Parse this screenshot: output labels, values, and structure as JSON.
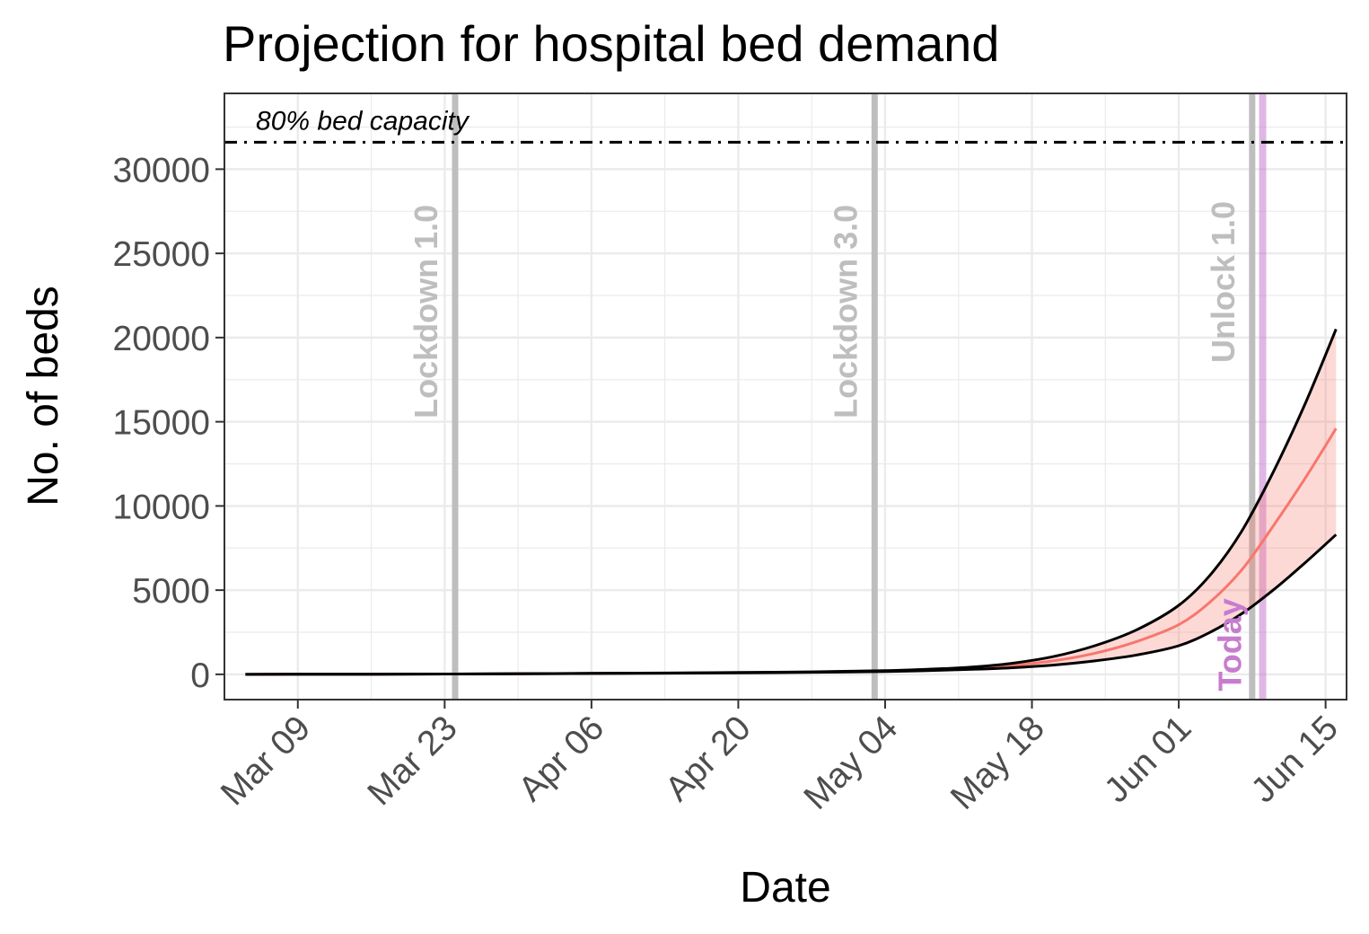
{
  "chart_data": {
    "type": "line",
    "title": "Projection for hospital bed demand",
    "xlabel": "Date",
    "ylabel": "No. of beds",
    "x_range": [
      "2020-03-02",
      "2020-06-17"
    ],
    "ylim": [
      -1500,
      34500
    ],
    "x_ticks": [
      {
        "date": "2020-03-09",
        "label": "Mar 09"
      },
      {
        "date": "2020-03-23",
        "label": "Mar 23"
      },
      {
        "date": "2020-04-06",
        "label": "Apr 06"
      },
      {
        "date": "2020-04-20",
        "label": "Apr 20"
      },
      {
        "date": "2020-05-04",
        "label": "May 04"
      },
      {
        "date": "2020-05-18",
        "label": "May 18"
      },
      {
        "date": "2020-06-01",
        "label": "Jun 01"
      },
      {
        "date": "2020-06-15",
        "label": "Jun 15"
      }
    ],
    "y_ticks": [
      0,
      5000,
      10000,
      15000,
      20000,
      25000,
      30000
    ],
    "grid": true,
    "capacity_line": {
      "value": 31600,
      "label": "80% bed capacity",
      "color": "#000000"
    },
    "events": [
      {
        "date": "2020-03-24",
        "label": "Lockdown 1.0",
        "color": "#bebebe"
      },
      {
        "date": "2020-05-03",
        "label": "Lockdown 3.0",
        "color": "#bebebe"
      },
      {
        "date": "2020-06-08",
        "label": "Unlock 1.0",
        "color": "#bebebe"
      },
      {
        "date": "2020-06-09",
        "label": "Today",
        "color": "#c77cce"
      }
    ],
    "x": [
      "2020-03-04",
      "2020-03-09",
      "2020-03-16",
      "2020-03-23",
      "2020-03-30",
      "2020-04-06",
      "2020-04-13",
      "2020-04-20",
      "2020-04-27",
      "2020-05-04",
      "2020-05-08",
      "2020-05-12",
      "2020-05-16",
      "2020-05-20",
      "2020-05-24",
      "2020-05-28",
      "2020-06-01",
      "2020-06-04",
      "2020-06-07",
      "2020-06-10",
      "2020-06-13",
      "2020-06-16"
    ],
    "series": [
      {
        "name": "",
        "role": "upper",
        "color": "#000000",
        "values": [
          0,
          5,
          10,
          20,
          40,
          60,
          80,
          110,
          150,
          220,
          300,
          420,
          650,
          1050,
          1700,
          2650,
          4100,
          5900,
          8500,
          12000,
          16000,
          20500
        ]
      },
      {
        "name": "",
        "role": "median",
        "color": "#f8766d",
        "values": [
          0,
          5,
          10,
          20,
          35,
          55,
          75,
          100,
          140,
          200,
          260,
          360,
          520,
          800,
          1250,
          1950,
          2950,
          4300,
          6200,
          8800,
          11600,
          14600
        ]
      },
      {
        "name": "",
        "role": "lower",
        "color": "#000000",
        "values": [
          0,
          5,
          10,
          20,
          30,
          50,
          70,
          90,
          120,
          170,
          220,
          290,
          390,
          550,
          800,
          1150,
          1700,
          2500,
          3600,
          5000,
          6600,
          8300
        ]
      }
    ],
    "band_color": "#f8766d"
  }
}
